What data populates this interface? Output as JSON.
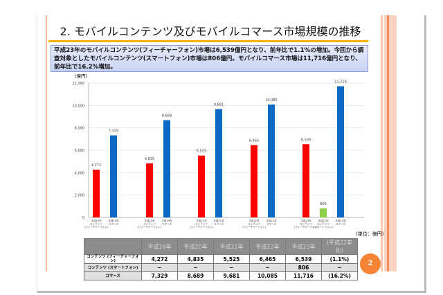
{
  "slide": {
    "title": "2. モバイルコンテンツ及びモバイルコマース市場規模の推移",
    "summary": "平成23年のモバイルコンテンツ(フィーチャーフォン)市場は6,539億円となり、前年比で1.1%の増加。今回から調査対象としたモバイルコンテンツ(スマートフォン)市場は806億円。モバイルコマース市場は11,716億円となり、前年比で16.2%増加。",
    "page_number": "2",
    "accent": "#f58534"
  },
  "chart_data": {
    "type": "bar",
    "ylabel": "(億円)",
    "ylim": [
      0,
      12000
    ],
    "yticks": [
      0,
      2000,
      4000,
      6000,
      8000,
      10000,
      12000
    ],
    "grid": true,
    "bars": [
      {
        "label": "平成19年 コンテンツ (フィーチャーフォン)",
        "value": 4272,
        "color": "#ff0000",
        "group": 0
      },
      {
        "label": "平成19年 コマース",
        "value": 7329,
        "color": "#0a6ac6",
        "group": 0
      },
      {
        "label": "平成20年 コンテンツ (フィーチャーフォン)",
        "value": 4835,
        "color": "#ff0000",
        "group": 1
      },
      {
        "label": "平成20年 コマース",
        "value": 8689,
        "color": "#0a6ac6",
        "group": 1
      },
      {
        "label": "平成21年 コンテンツ (フィーチャーフォン)",
        "value": 5525,
        "color": "#ff0000",
        "group": 2
      },
      {
        "label": "平成21年 コマース",
        "value": 9681,
        "color": "#0a6ac6",
        "group": 2
      },
      {
        "label": "平成22年 コンテンツ (フィーチャーフォン)",
        "value": 6465,
        "color": "#ff0000",
        "group": 3
      },
      {
        "label": "平成22年 コマース",
        "value": 10085,
        "color": "#0a6ac6",
        "group": 3
      },
      {
        "label": "平成23年 コンテンツ (フィーチャーフォン)",
        "value": 6539,
        "color": "#ff0000",
        "group": 4
      },
      {
        "label": "平成23年 コンテンツ (スマートフォン)",
        "value": 806,
        "color": "#8cd04a",
        "group": 4
      },
      {
        "label": "平成23年 コマース",
        "value": 11716,
        "color": "#0a6ac6",
        "group": 4
      }
    ]
  },
  "table": {
    "unit": "(単位：億円)",
    "headers": [
      "",
      "平成19年",
      "平成20年",
      "平成21年",
      "平成22年",
      "平成23年",
      "(平成22年比)"
    ],
    "rows": [
      {
        "label": "コンテンツ (フィーチャーフォン)",
        "cells": [
          "4,272",
          "4,835",
          "5,525",
          "6,465",
          "6,539",
          "(1.1%)"
        ]
      },
      {
        "label": "コンテンツ (スマートフォン)",
        "cells": [
          "−",
          "−",
          "−",
          "−",
          "806",
          "−"
        ]
      },
      {
        "label": "コマース",
        "cells": [
          "7,329",
          "8,689",
          "9,681",
          "10,085",
          "11,716",
          "(16.2%)"
        ]
      }
    ]
  }
}
